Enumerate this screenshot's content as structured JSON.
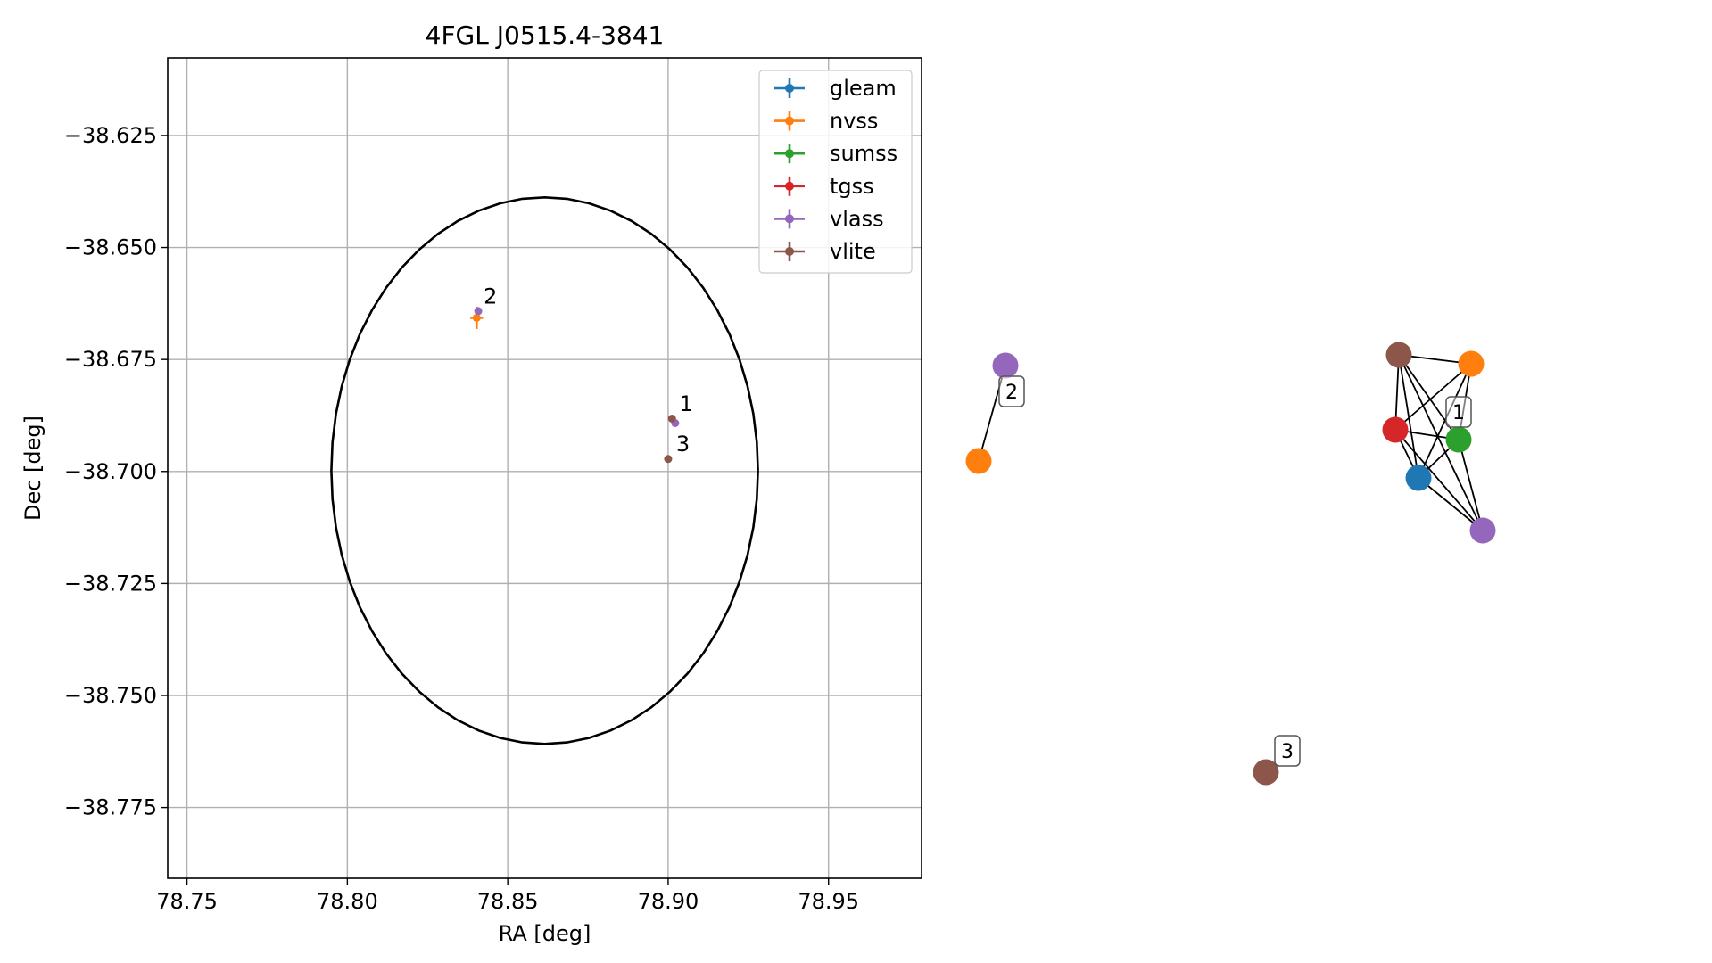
{
  "chart_data": [
    {
      "type": "scatter",
      "title": "4FGL J0515.4-3841",
      "xlabel": "RA [deg]",
      "ylabel": "Dec [deg]",
      "xlim": [
        78.744,
        78.979
      ],
      "ylim": [
        -38.7908,
        -38.6077
      ],
      "x_ticks": [
        78.75,
        78.8,
        78.85,
        78.9,
        78.95
      ],
      "x_tick_labels": [
        "78.75",
        "78.80",
        "78.85",
        "78.90",
        "78.95"
      ],
      "y_ticks": [
        -38.625,
        -38.65,
        -38.675,
        -38.7,
        -38.725,
        -38.75,
        -38.775
      ],
      "y_tick_labels": [
        "−38.625",
        "−38.650",
        "−38.675",
        "−38.700",
        "−38.725",
        "−38.750",
        "−38.775"
      ],
      "grid": true,
      "legend_position": "top-right",
      "ellipse": {
        "center_x": 78.8615,
        "center_y": -38.6998,
        "semi_axis_x": 0.0665,
        "semi_axis_y": 0.061,
        "color": "#000000"
      },
      "series": [
        {
          "name": "gleam",
          "color": "#1f77b4",
          "points": []
        },
        {
          "name": "nvss",
          "color": "#ff7f0e",
          "points": [
            {
              "x": 78.8403,
              "y": -38.6657,
              "xerr": 0.002,
              "yerr": 0.0025
            }
          ]
        },
        {
          "name": "sumss",
          "color": "#2ca02c",
          "points": []
        },
        {
          "name": "tgss",
          "color": "#d62728",
          "points": []
        },
        {
          "name": "vlass",
          "color": "#9467bd",
          "points": [
            {
              "x": 78.8408,
              "y": -38.6642
            },
            {
              "x": 78.9022,
              "y": -38.6892
            }
          ]
        },
        {
          "name": "vlite",
          "color": "#8c564b",
          "points": [
            {
              "x": 78.9012,
              "y": -38.6882
            },
            {
              "x": 78.9,
              "y": -38.6972
            }
          ]
        }
      ],
      "annotations": [
        {
          "text": "2",
          "x": 78.8425,
          "y": -38.6625
        },
        {
          "text": "1",
          "x": 78.9035,
          "y": -38.6865
        },
        {
          "text": "3",
          "x": 78.9025,
          "y": -38.6955
        }
      ]
    },
    {
      "type": "network",
      "nodes": [
        {
          "id": "g2-vlass",
          "group": "2",
          "color": "#9467bd"
        },
        {
          "id": "g2-nvss",
          "group": "2",
          "color": "#ff7f0e"
        },
        {
          "id": "g1-vlite",
          "group": "1",
          "color": "#8c564b"
        },
        {
          "id": "g1-nvss",
          "group": "1",
          "color": "#ff7f0e"
        },
        {
          "id": "g1-tgss",
          "group": "1",
          "color": "#d62728"
        },
        {
          "id": "g1-sumss",
          "group": "1",
          "color": "#2ca02c"
        },
        {
          "id": "g1-gleam",
          "group": "1",
          "color": "#1f77b4"
        },
        {
          "id": "g1-vlass",
          "group": "1",
          "color": "#9467bd"
        },
        {
          "id": "g3-vlite",
          "group": "3",
          "color": "#8c564b"
        }
      ],
      "edges": [
        [
          "g2-vlass",
          "g2-nvss"
        ],
        [
          "g1-vlite",
          "g1-nvss"
        ],
        [
          "g1-vlite",
          "g1-tgss"
        ],
        [
          "g1-vlite",
          "g1-sumss"
        ],
        [
          "g1-vlite",
          "g1-gleam"
        ],
        [
          "g1-vlite",
          "g1-vlass"
        ],
        [
          "g1-nvss",
          "g1-tgss"
        ],
        [
          "g1-nvss",
          "g1-sumss"
        ],
        [
          "g1-nvss",
          "g1-gleam"
        ],
        [
          "g1-tgss",
          "g1-sumss"
        ],
        [
          "g1-tgss",
          "g1-gleam"
        ],
        [
          "g1-tgss",
          "g1-vlass"
        ],
        [
          "g1-sumss",
          "g1-gleam"
        ],
        [
          "g1-sumss",
          "g1-vlass"
        ],
        [
          "g1-gleam",
          "g1-vlass"
        ]
      ],
      "group_labels": [
        "1",
        "2",
        "3"
      ]
    }
  ]
}
